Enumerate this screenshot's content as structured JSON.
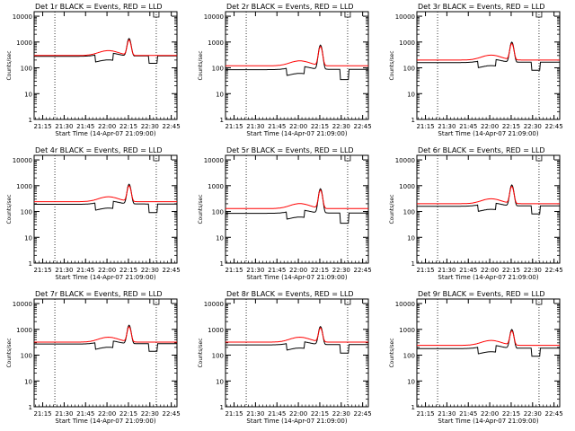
{
  "chart_data": [
    {
      "type": "line",
      "title": "Det 1r BLACK = Events, RED = LLD",
      "events_level": 280,
      "lld_level": 300,
      "peak": 1800,
      "dip": 150,
      "dip2": 150
    },
    {
      "type": "line",
      "title": "Det 2r BLACK = Events, RED = LLD",
      "events_level": 85,
      "lld_level": 120,
      "peak": 1000,
      "dip": 45,
      "dip2": 35
    },
    {
      "type": "line",
      "title": "Det 3r BLACK = Events, RED = LLD",
      "events_level": 160,
      "lld_level": 200,
      "peak": 1300,
      "dip": 90,
      "dip2": 80
    },
    {
      "type": "line",
      "title": "Det 4r BLACK = Events, RED = LLD",
      "events_level": 190,
      "lld_level": 240,
      "peak": 1500,
      "dip": 100,
      "dip2": 90
    },
    {
      "type": "line",
      "title": "Det 5r BLACK = Events, RED = LLD",
      "events_level": 85,
      "lld_level": 130,
      "peak": 1000,
      "dip": 45,
      "dip2": 35
    },
    {
      "type": "line",
      "title": "Det 6r BLACK = Events, RED = LLD",
      "events_level": 160,
      "lld_level": 200,
      "peak": 1400,
      "dip": 90,
      "dip2": 80
    },
    {
      "type": "line",
      "title": "Det 7r BLACK = Events, RED = LLD",
      "events_level": 270,
      "lld_level": 320,
      "peak": 1900,
      "dip": 150,
      "dip2": 140
    },
    {
      "type": "line",
      "title": "Det 8r BLACK = Events, RED = LLD",
      "events_level": 250,
      "lld_level": 320,
      "peak": 1700,
      "dip": 140,
      "dip2": 120
    },
    {
      "type": "line",
      "title": "Det 9r BLACK = Events, RED = LLD",
      "events_level": 180,
      "lld_level": 240,
      "peak": 1300,
      "dip": 100,
      "dip2": 90
    }
  ],
  "shared": {
    "xlabel": "Start Time (14-Apr-07 21:09:00)",
    "ylabel": "Counts/sec",
    "xticks": [
      "21:15",
      "21:30",
      "21:45",
      "22:00",
      "22:15",
      "22:30",
      "22:45"
    ],
    "yticks": [
      "1",
      "10",
      "100",
      "1000",
      "10000"
    ],
    "xlim_minutes": [
      0,
      100
    ],
    "xtick_minutes": [
      6,
      21,
      36,
      51,
      66,
      81,
      96
    ],
    "ylim": [
      1,
      15000
    ],
    "dotted_lines_minutes": [
      14.5,
      85.5
    ],
    "series": [
      {
        "name": "Events",
        "color": "#000000"
      },
      {
        "name": "LLD",
        "color": "#ff0000"
      }
    ],
    "colors": {
      "axes": "#000000",
      "events": "#000000",
      "lld": "#ff0000",
      "background": "#ffffff"
    }
  }
}
